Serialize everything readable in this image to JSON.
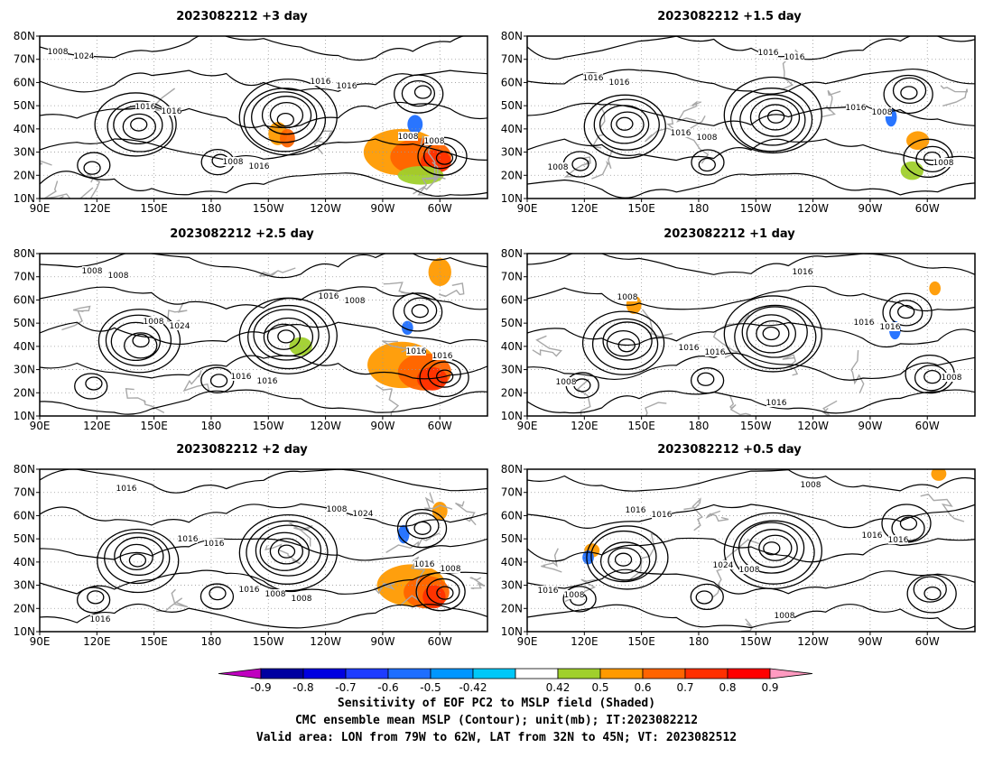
{
  "panels": [
    {
      "title": "2023082212  +3 day",
      "contour_labels": [
        "1008",
        "1016",
        "1008",
        "1016",
        "1008",
        "1024",
        "1016",
        "1016",
        "1016",
        "1008"
      ],
      "shading": [
        {
          "value": 0.6,
          "lon": 215,
          "lat": 38,
          "w": 5,
          "h": 5
        },
        {
          "value": 0.7,
          "lon": 220,
          "lat": 36,
          "w": 4,
          "h": 4
        },
        {
          "value": 0.6,
          "lon": 280,
          "lat": 30,
          "w": 20,
          "h": 10
        },
        {
          "value": 0.7,
          "lon": 290,
          "lat": 28,
          "w": 16,
          "h": 8
        },
        {
          "value": 0.8,
          "lon": 298,
          "lat": 26,
          "w": 8,
          "h": 5
        },
        {
          "value": -0.6,
          "lon": 287,
          "lat": 42,
          "w": 4,
          "h": 4
        },
        {
          "value": 0.5,
          "lon": 290,
          "lat": 20,
          "w": 12,
          "h": 4
        }
      ]
    },
    {
      "title": "2023082212  +1.5 day",
      "contour_labels": [
        "1016",
        "1016",
        "1016",
        "1016",
        "1008",
        "1016",
        "1008",
        "1016",
        "1008",
        "1008"
      ],
      "shading": [
        {
          "value": -0.6,
          "lon": 281,
          "lat": 45,
          "w": 3,
          "h": 4
        },
        {
          "value": 0.6,
          "lon": 295,
          "lat": 35,
          "w": 6,
          "h": 4
        },
        {
          "value": 0.5,
          "lon": 292,
          "lat": 22,
          "w": 6,
          "h": 4
        }
      ]
    },
    {
      "title": "2023082212  +2.5 day",
      "contour_labels": [
        "1008",
        "1016",
        "1016",
        "1016",
        "1008",
        "1024",
        "1016",
        "1008",
        "1016",
        "1008"
      ],
      "shading": [
        {
          "value": 0.6,
          "lon": 280,
          "lat": 32,
          "w": 18,
          "h": 10
        },
        {
          "value": 0.7,
          "lon": 292,
          "lat": 29,
          "w": 14,
          "h": 8
        },
        {
          "value": 0.8,
          "lon": 296,
          "lat": 26,
          "w": 8,
          "h": 5
        },
        {
          "value": -0.6,
          "lon": 283,
          "lat": 48,
          "w": 3,
          "h": 3
        },
        {
          "value": 0.6,
          "lon": 300,
          "lat": 72,
          "w": 6,
          "h": 6
        },
        {
          "value": 0.5,
          "lon": 227,
          "lat": 40,
          "w": 6,
          "h": 4
        }
      ]
    },
    {
      "title": "2023082212  +1 day",
      "contour_labels": [
        "1016",
        "1016",
        "1016",
        "1008",
        "1008",
        "1016",
        "1016",
        "1016",
        "1008"
      ],
      "shading": [
        {
          "value": 0.6,
          "lon": 146,
          "lat": 58,
          "w": 4,
          "h": 4
        },
        {
          "value": -0.6,
          "lon": 283,
          "lat": 47,
          "w": 3,
          "h": 4
        },
        {
          "value": 0.6,
          "lon": 304,
          "lat": 65,
          "w": 3,
          "h": 3
        }
      ]
    },
    {
      "title": "2023082212  +2 day",
      "contour_labels": [
        "1016",
        "1008",
        "1016",
        "1016",
        "1016",
        "1008",
        "1024",
        "1008",
        "1016",
        "1016",
        "1008"
      ],
      "shading": [
        {
          "value": 0.6,
          "lon": 285,
          "lat": 30,
          "w": 18,
          "h": 9
        },
        {
          "value": 0.7,
          "lon": 293,
          "lat": 27,
          "w": 12,
          "h": 7
        },
        {
          "value": 0.8,
          "lon": 297,
          "lat": 25,
          "w": 6,
          "h": 5
        },
        {
          "value": -0.6,
          "lon": 281,
          "lat": 52,
          "w": 3,
          "h": 4
        },
        {
          "value": 0.6,
          "lon": 300,
          "lat": 62,
          "w": 4,
          "h": 4
        }
      ]
    },
    {
      "title": "2023082212  +0.5 day",
      "contour_labels": [
        "1008",
        "1016",
        "1016",
        "1016",
        "1024",
        "1008",
        "1016",
        "1008",
        "1016",
        "1008"
      ],
      "shading": [
        {
          "value": 0.6,
          "lon": 124,
          "lat": 45,
          "w": 4,
          "h": 3
        },
        {
          "value": -0.6,
          "lon": 122,
          "lat": 42,
          "w": 3,
          "h": 3
        },
        {
          "value": 0.6,
          "lon": 306,
          "lat": 78,
          "w": 4,
          "h": 3
        }
      ]
    }
  ],
  "lon_ticks": [
    "90E",
    "120E",
    "150E",
    "180",
    "150W",
    "120W",
    "90W",
    "60W"
  ],
  "lat_ticks": [
    "10N",
    "20N",
    "30N",
    "40N",
    "50N",
    "60N",
    "70N",
    "80N"
  ],
  "colorbar": {
    "ticks": [
      "-0.9",
      "-0.8",
      "-0.7",
      "-0.6",
      "-0.5",
      "-0.42",
      "0.42",
      "0.5",
      "0.6",
      "0.7",
      "0.8",
      "0.9"
    ],
    "colors": [
      "#c000c0",
      "#0000a0",
      "#0000e0",
      "#1e3cff",
      "#1e6eff",
      "#0096ff",
      "#00c8f8",
      "#ffffff",
      "#a0d02c",
      "#ff9a00",
      "#ff6400",
      "#ff3000",
      "#ff0000",
      "#ff9ac0"
    ]
  },
  "caption": {
    "line1": "Sensitivity of EOF PC2 to MSLP field (Shaded)",
    "line2": "CMC ensemble mean MSLP (Contour); unit(mb); IT:2023082212",
    "line3": "Valid area: LON from 79W to 62W, LAT from 32N to 45N; VT: 2023082512"
  }
}
